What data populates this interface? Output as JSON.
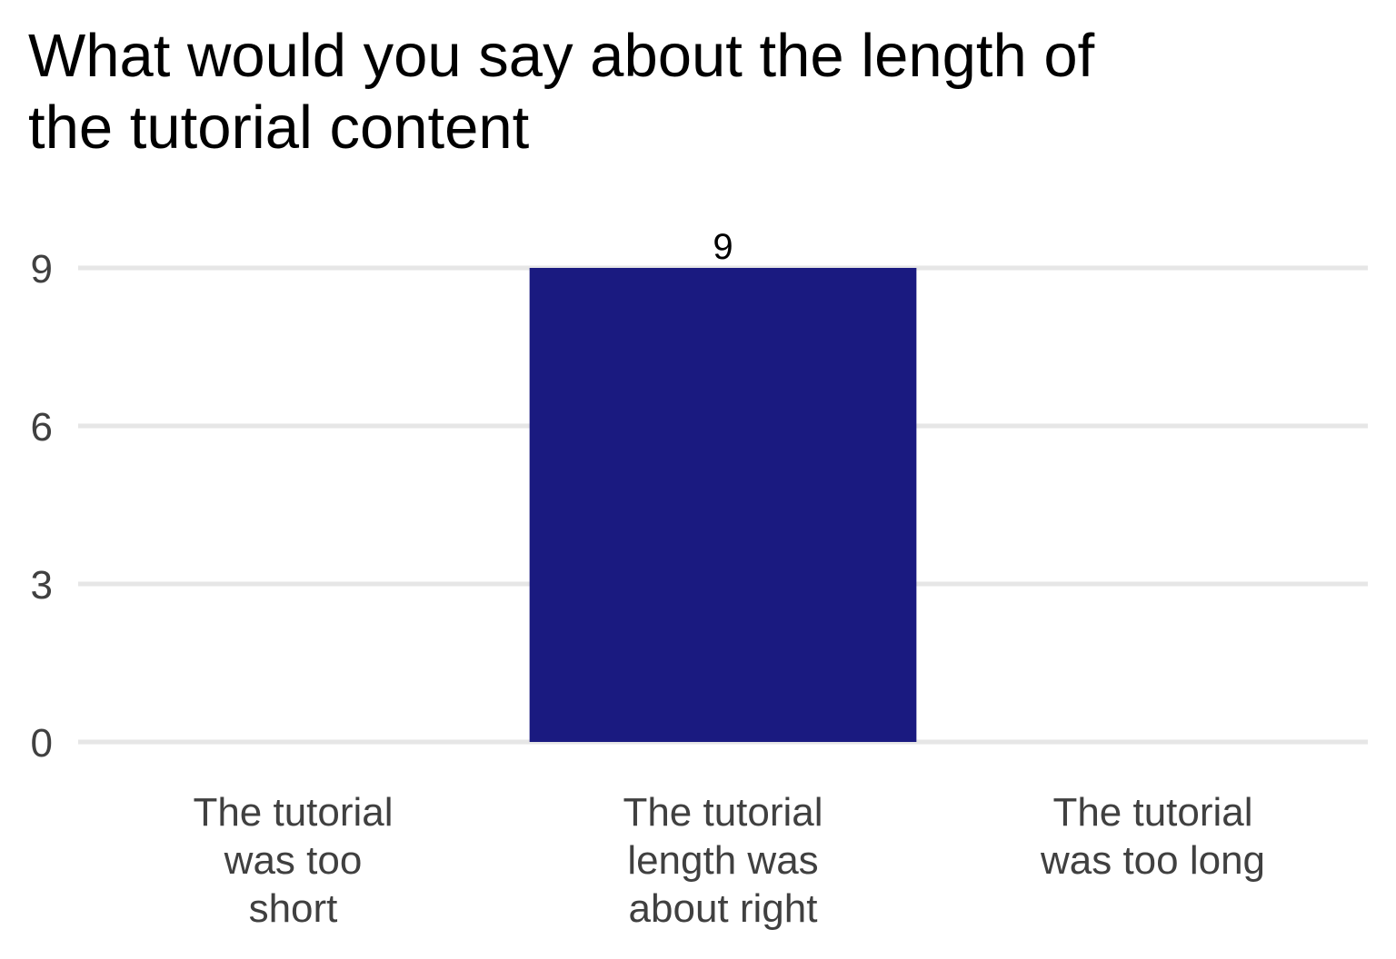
{
  "chart_data": {
    "type": "bar",
    "title_lines": [
      "What would you say about the length of",
      "the tutorial content"
    ],
    "xlabel": "",
    "ylabel": "",
    "categories": [
      [
        "The tutorial",
        "was too",
        "short"
      ],
      [
        "The tutorial",
        "length was",
        "about right"
      ],
      [
        "The tutorial",
        "was too long"
      ]
    ],
    "values": [
      0,
      9,
      0
    ],
    "data_labels": [
      "",
      "9",
      ""
    ],
    "yticks": [
      0,
      3,
      6,
      9
    ],
    "ylim": [
      0,
      9
    ],
    "grid": "horizontal",
    "legend": "none",
    "bar_color": "#1a1a80"
  }
}
